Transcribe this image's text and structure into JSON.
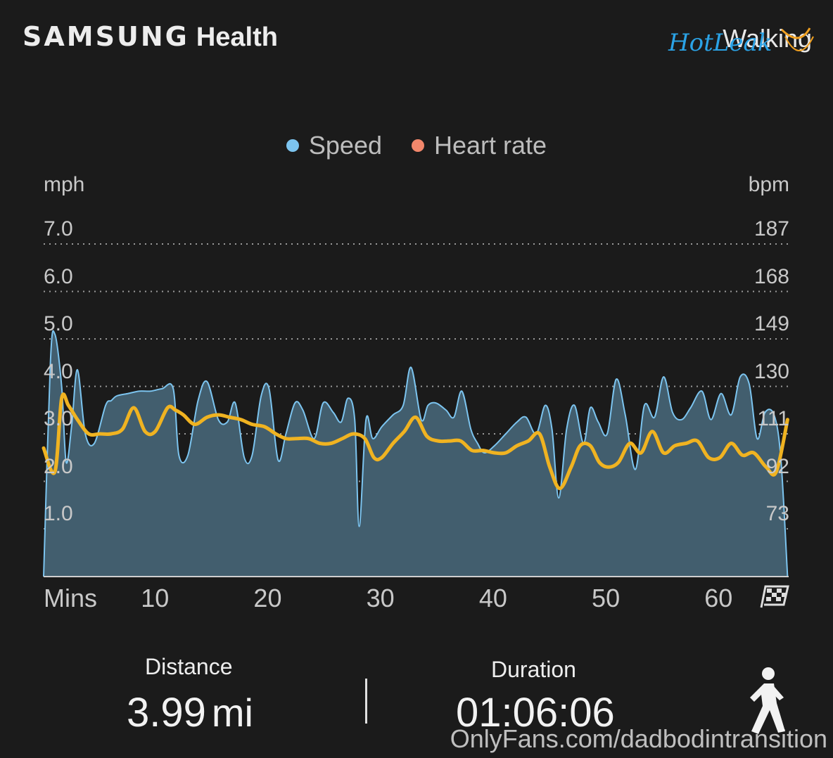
{
  "header": {
    "brand_part1": "SAMSUNG",
    "brand_part2": "Health",
    "workout_type": "Walking"
  },
  "legend": [
    {
      "label": "Speed",
      "color": "#7cc4ef"
    },
    {
      "label": "Heart rate",
      "color": "#f2876b"
    }
  ],
  "chart_data": {
    "type": "area",
    "x_unit_label": "Mins",
    "left_unit": "mph",
    "right_unit": "bpm",
    "left_ticks": [
      "7.0",
      "6.0",
      "5.0",
      "4.0",
      "3.0",
      "2.0",
      "1.0"
    ],
    "right_ticks": [
      "187",
      "168",
      "149",
      "130",
      "111",
      "92",
      "73"
    ],
    "x_ticks": [
      "10",
      "20",
      "30",
      "40",
      "50",
      "60"
    ],
    "xlim": [
      0,
      66.1
    ],
    "ylim_left": [
      0,
      7
    ],
    "ylim_right": [
      54,
      187
    ],
    "grid": "dotted horizontal",
    "series": [
      {
        "name": "Speed",
        "color": "#7cc4ef",
        "x": [
          0,
          0.6,
          1,
          1.6,
          2,
          2.5,
          3,
          3.7,
          4.5,
          5.5,
          6,
          6.5,
          7.5,
          8.5,
          9.5,
          10.5,
          11.5,
          12,
          12.8,
          13.7,
          14.5,
          15.5,
          16.3,
          17,
          17.8,
          18.5,
          19.3,
          20,
          20.8,
          21.5,
          22.3,
          23,
          24,
          24.8,
          25.7,
          26.4,
          27,
          27.6,
          28,
          28.6,
          29.2,
          30,
          31,
          31.9,
          32.6,
          33.5,
          34.1,
          34.8,
          35.7,
          36.4,
          37.1,
          37.9,
          38.5,
          39.1,
          40,
          41,
          42,
          42.8,
          43.7,
          44.5,
          45.1,
          45.7,
          46.4,
          47.1,
          47.9,
          48.5,
          49.2,
          50,
          50.8,
          51.6,
          52.5,
          53.3,
          54.2,
          55,
          55.8,
          56.6,
          57.4,
          58.4,
          59.2,
          60.1,
          61,
          61.8,
          62.6,
          63.3,
          64,
          64.8,
          65.4,
          66
        ],
        "y": [
          0,
          4.5,
          5.1,
          4.0,
          2.4,
          3.2,
          4.35,
          3.0,
          2.8,
          3.6,
          3.7,
          3.8,
          3.85,
          3.9,
          3.9,
          3.95,
          3.95,
          2.55,
          2.55,
          3.7,
          4.1,
          3.3,
          3.25,
          3.65,
          2.5,
          2.55,
          3.8,
          3.95,
          2.45,
          3.0,
          3.65,
          3.5,
          2.9,
          3.65,
          3.45,
          3.25,
          3.75,
          3.3,
          1.05,
          3.3,
          2.9,
          3.15,
          3.4,
          3.6,
          4.4,
          3.3,
          3.6,
          3.65,
          3.5,
          3.35,
          3.9,
          3.1,
          2.8,
          2.6,
          2.75,
          3.0,
          3.25,
          3.35,
          3.0,
          3.6,
          3.1,
          1.65,
          3.1,
          3.6,
          2.8,
          3.55,
          3.25,
          3.0,
          4.15,
          3.4,
          2.25,
          3.6,
          3.35,
          4.2,
          3.45,
          3.3,
          3.55,
          3.9,
          3.3,
          3.85,
          3.4,
          4.2,
          4.05,
          2.9,
          3.45,
          3.4,
          2.5,
          0
        ],
        "fill": "#425e6e"
      },
      {
        "name": "Heart rate",
        "color": "#f0b321",
        "x": [
          0,
          1,
          1.6,
          2.2,
          3,
          4,
          5,
          6,
          7,
          8,
          9,
          9.9,
          11,
          11.7,
          12.4,
          13.4,
          14.5,
          15.5,
          16.5,
          17.5,
          18.5,
          19.6,
          20.6,
          21.5,
          22.4,
          23.5,
          24.5,
          25.5,
          26.5,
          27.5,
          28.5,
          29.3,
          30,
          31,
          32,
          33,
          34,
          35,
          36,
          37,
          38,
          39,
          40,
          41,
          42,
          43,
          44,
          44.9,
          45.8,
          46.8,
          47.6,
          48.5,
          49.3,
          50.1,
          51,
          52,
          53,
          54,
          55,
          56,
          57,
          58,
          59,
          60,
          61,
          62,
          63,
          64.1,
          65,
          66
        ],
        "y": [
          2.7,
          2.2,
          3.75,
          3.6,
          3.3,
          3.0,
          3.0,
          3.0,
          3.1,
          3.55,
          3.05,
          3.05,
          3.55,
          3.5,
          3.4,
          3.2,
          3.35,
          3.4,
          3.35,
          3.3,
          3.2,
          3.15,
          3.0,
          2.9,
          2.9,
          2.9,
          2.8,
          2.8,
          2.9,
          3.0,
          2.9,
          2.5,
          2.5,
          2.8,
          3.05,
          3.35,
          2.95,
          2.85,
          2.85,
          2.85,
          2.65,
          2.65,
          2.6,
          2.6,
          2.75,
          2.85,
          3.0,
          2.3,
          1.85,
          2.3,
          2.75,
          2.75,
          2.4,
          2.3,
          2.4,
          2.8,
          2.6,
          3.05,
          2.6,
          2.75,
          2.8,
          2.85,
          2.5,
          2.5,
          2.8,
          2.55,
          2.6,
          2.3,
          2.2,
          3.3
        ],
        "fill": "none"
      }
    ]
  },
  "stats": {
    "distance_label": "Distance",
    "distance_value": "3.99",
    "distance_unit": "mi",
    "duration_label": "Duration",
    "duration_value": "01:06:06"
  },
  "icons": {
    "finish": "checkered-flag-icon",
    "activity": "walking-person-icon"
  },
  "watermark": "OnlyFans.com/dadbodintransition",
  "watermark_logo": "HotLeak"
}
